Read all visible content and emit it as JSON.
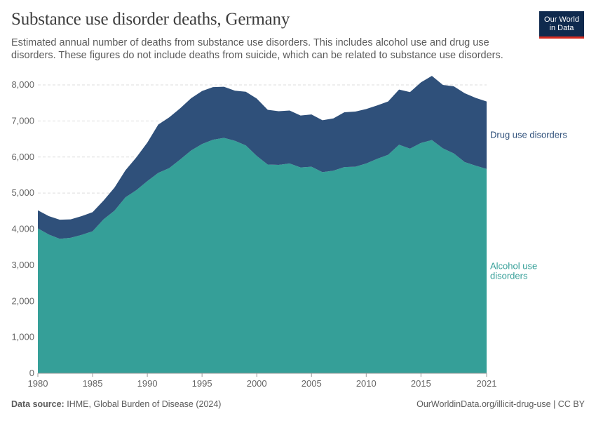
{
  "header": {
    "title": "Substance use disorder deaths, Germany",
    "subtitle": "Estimated annual number of deaths from substance use disorders. This includes alcohol use and drug use disorders. These figures do not include deaths from suicide, which can be related to substance use disorders."
  },
  "logo": {
    "line1": "Our World",
    "line2": "in Data"
  },
  "footer": {
    "source_label": "Data source:",
    "source_text": "IHME, Global Burden of Disease (2024)",
    "url": "OurWorldinData.org/illicit-drug-use | CC BY"
  },
  "chart_data": {
    "type": "area",
    "stacked": true,
    "x": [
      1980,
      1981,
      1982,
      1983,
      1984,
      1985,
      1986,
      1987,
      1988,
      1989,
      1990,
      1991,
      1992,
      1993,
      1994,
      1995,
      1996,
      1997,
      1998,
      1999,
      2000,
      2001,
      2002,
      2003,
      2004,
      2005,
      2006,
      2007,
      2008,
      2009,
      2010,
      2011,
      2012,
      2013,
      2014,
      2015,
      2016,
      2017,
      2018,
      2019,
      2020,
      2021
    ],
    "series": [
      {
        "name": "Alcohol use disorders",
        "label_lines": [
          "Alcohol use",
          "disorders"
        ],
        "color": "#359f98",
        "values": [
          4020,
          3850,
          3730,
          3760,
          3840,
          3940,
          4270,
          4510,
          4880,
          5080,
          5330,
          5560,
          5690,
          5930,
          6180,
          6360,
          6480,
          6530,
          6450,
          6320,
          6030,
          5790,
          5780,
          5820,
          5710,
          5730,
          5580,
          5620,
          5720,
          5730,
          5820,
          5950,
          6060,
          6340,
          6230,
          6390,
          6470,
          6240,
          6100,
          5860,
          5760,
          5670
        ]
      },
      {
        "name": "Drug use disorders",
        "label_lines": [
          "Drug use disorders"
        ],
        "color": "#2f507a",
        "values": [
          500,
          510,
          530,
          510,
          520,
          530,
          520,
          640,
          750,
          910,
          1070,
          1340,
          1410,
          1420,
          1450,
          1470,
          1460,
          1420,
          1390,
          1490,
          1590,
          1520,
          1490,
          1470,
          1440,
          1450,
          1440,
          1450,
          1520,
          1530,
          1510,
          1480,
          1480,
          1530,
          1570,
          1680,
          1780,
          1760,
          1860,
          1910,
          1880,
          1870
        ]
      }
    ],
    "ylim": [
      0,
      8000
    ],
    "y_ticks": [
      0,
      1000,
      2000,
      3000,
      4000,
      5000,
      6000,
      7000,
      8000
    ],
    "y_tick_labels": [
      "0",
      "1,000",
      "2,000",
      "3,000",
      "4,000",
      "5,000",
      "6,000",
      "7,000",
      "8,000"
    ],
    "x_ticks": [
      1980,
      1985,
      1990,
      1995,
      2000,
      2005,
      2010,
      2015,
      2021
    ],
    "x_tick_labels": [
      "1980",
      "1985",
      "1990",
      "1995",
      "2000",
      "2005",
      "2010",
      "2015",
      "2021"
    ],
    "grid": true
  }
}
